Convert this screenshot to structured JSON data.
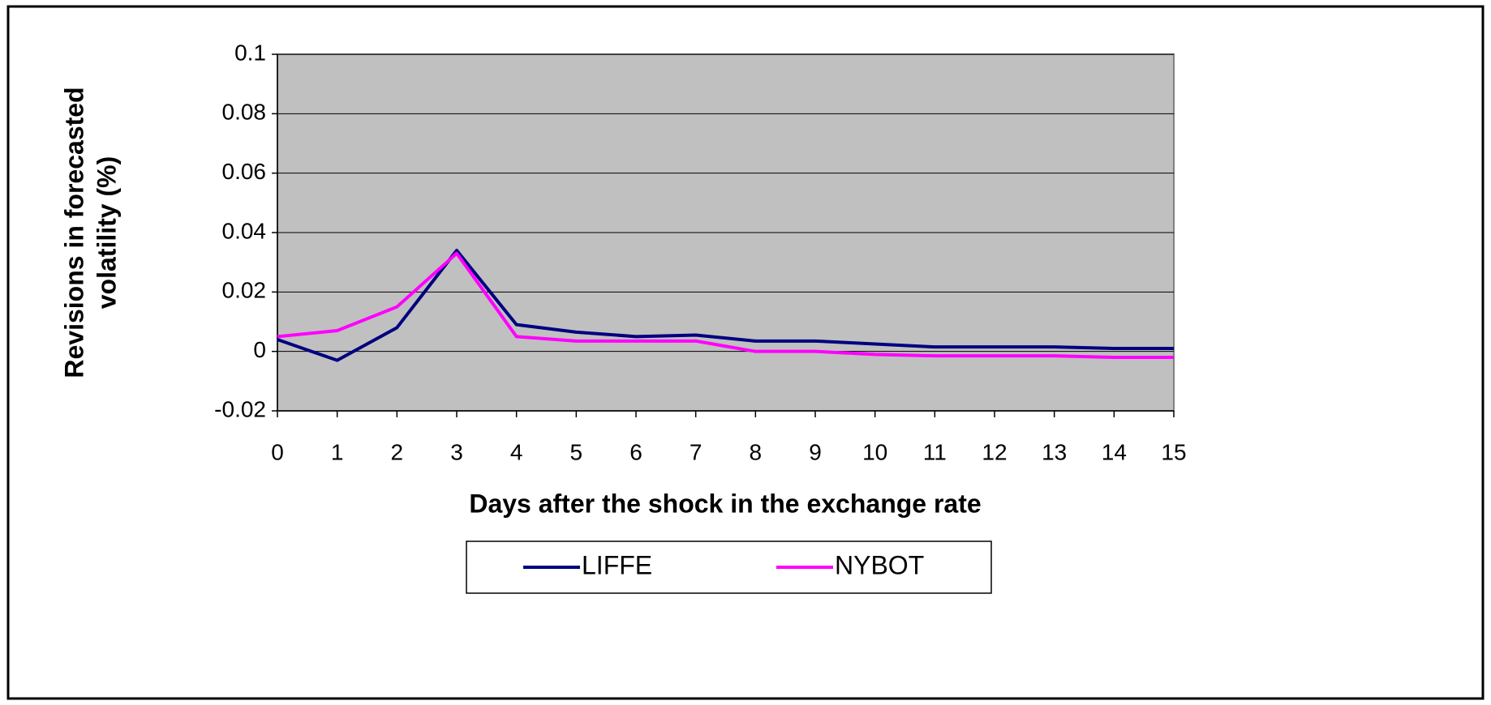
{
  "chart_data": {
    "type": "line",
    "x_label": "Days after the shock in the exchange rate",
    "y_label": [
      "Revisions in forecasted",
      "volatility (%)"
    ],
    "x": [
      0,
      1,
      2,
      3,
      4,
      5,
      6,
      7,
      8,
      9,
      10,
      11,
      12,
      13,
      14,
      15
    ],
    "series": [
      {
        "name": "LIFFE",
        "color": "#000080",
        "values": [
          0.004,
          -0.003,
          0.008,
          0.034,
          0.009,
          0.0065,
          0.005,
          0.0055,
          0.0035,
          0.0035,
          0.0025,
          0.0015,
          0.0015,
          0.0015,
          0.001,
          0.001
        ]
      },
      {
        "name": "NYBOT",
        "color": "#ff00ff",
        "values": [
          0.005,
          0.007,
          0.015,
          0.033,
          0.005,
          0.0035,
          0.0035,
          0.0035,
          0,
          0,
          -0.001,
          -0.0015,
          -0.0015,
          -0.0015,
          -0.002,
          -0.002
        ]
      }
    ],
    "xlim": [
      0,
      15
    ],
    "xticks": [
      0,
      1,
      2,
      3,
      4,
      5,
      6,
      7,
      8,
      9,
      10,
      11,
      12,
      13,
      14,
      15
    ],
    "ylim": [
      -0.02,
      0.1
    ],
    "yticks": [
      -0.02,
      0,
      0.02,
      0.04,
      0.06,
      0.08,
      0.1
    ],
    "grid": true,
    "legend": "bottom"
  }
}
